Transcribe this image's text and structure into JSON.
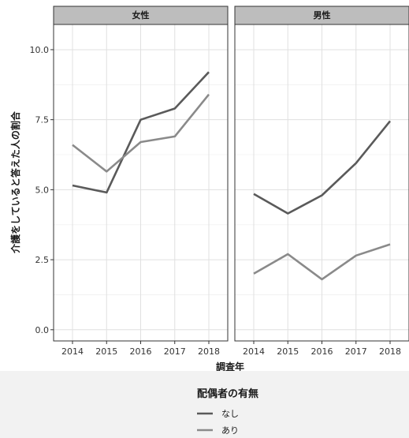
{
  "chart_data": {
    "type": "line",
    "panels": [
      {
        "title": "女性",
        "series": [
          {
            "name": "なし",
            "values": [
              5.15,
              4.9,
              7.5,
              7.9,
              9.2
            ]
          },
          {
            "name": "あり",
            "values": [
              6.6,
              5.65,
              6.7,
              6.9,
              8.4
            ]
          }
        ]
      },
      {
        "title": "男性",
        "series": [
          {
            "name": "なし",
            "values": [
              4.85,
              4.15,
              4.8,
              5.95,
              7.45
            ]
          },
          {
            "name": "あり",
            "values": [
              2.0,
              2.7,
              1.8,
              2.65,
              3.05
            ]
          }
        ]
      }
    ],
    "x": [
      "2014",
      "2015",
      "2016",
      "2017",
      "2018"
    ],
    "y_ticks": [
      "0.0",
      "2.5",
      "5.0",
      "7.5",
      "10.0"
    ],
    "ylim": [
      -0.4,
      10.9
    ],
    "xlabel": "調査年",
    "ylabel": "介護をしていると答えた人の割合",
    "legend": {
      "title": "配偶者の有無",
      "position": "bottom",
      "items": [
        {
          "label": "なし",
          "color": "#5a5a5a"
        },
        {
          "label": "あり",
          "color": "#8a8a8a"
        }
      ]
    },
    "colors": {
      "なし": "#5a5a5a",
      "あり": "#8a8a8a"
    },
    "grid": true
  }
}
